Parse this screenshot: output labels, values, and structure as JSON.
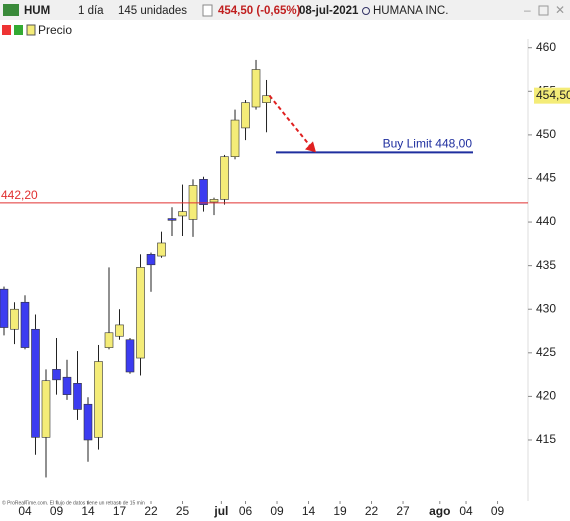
{
  "toolbar": {
    "symbol": "HUM",
    "period": "1 día",
    "units": "145 unidades",
    "price": "454,50 (-0,65%)",
    "date": "08-jul-2021",
    "name": "HUMANA INC."
  },
  "chart_data": {
    "type": "candlestick",
    "source": "© ProRealTime.com. El flujo de datos tiene un retraso de 15 min",
    "x": [
      0,
      1,
      2,
      3,
      4,
      5,
      6,
      7,
      8,
      9,
      10,
      11,
      12,
      13,
      14,
      15,
      16,
      17,
      18,
      19,
      20,
      21,
      22,
      23,
      24,
      25
    ],
    "series": [
      {
        "name": "Precio",
        "up_color": "#f4ec78",
        "down_color": "#3c3cf0",
        "open": [
          432.3,
          427.7,
          430.8,
          427.7,
          415.3,
          423.1,
          422.2,
          421.5,
          419.1,
          415.3,
          425.6,
          426.9,
          426.5,
          424.4,
          436.3,
          436.1,
          440.4,
          440.7,
          440.3,
          444.9,
          442.3,
          442.6,
          447.5,
          450.8,
          453.2,
          453.7
        ],
        "high": [
          432.6,
          430.8,
          431.6,
          429.4,
          423.1,
          426.7,
          424.2,
          425.2,
          419.9,
          425.9,
          434.8,
          430.0,
          426.7,
          436.3,
          436.5,
          438.9,
          441.7,
          444.3,
          444.9,
          445.2,
          442.8,
          447.7,
          452.9,
          454.0,
          458.6,
          456.3
        ],
        "low": [
          427.0,
          426.0,
          425.4,
          413.3,
          410.7,
          420.2,
          419.6,
          417.3,
          412.5,
          413.9,
          425.4,
          426.5,
          422.6,
          422.4,
          432.0,
          435.9,
          438.4,
          438.4,
          438.3,
          441.2,
          440.8,
          442.0,
          447.2,
          449.4,
          452.9,
          450.3
        ],
        "close": [
          427.9,
          430.0,
          425.6,
          415.3,
          421.8,
          421.9,
          420.2,
          418.5,
          415.0,
          424.0,
          427.3,
          428.2,
          422.8,
          434.8,
          435.1,
          437.6,
          440.2,
          441.2,
          444.2,
          442.0,
          442.6,
          447.5,
          451.7,
          453.7,
          457.5,
          454.5
        ]
      }
    ],
    "xlim": [
      -0.38,
      49.9
    ],
    "xticks": [
      {
        "value": 2,
        "label": "04"
      },
      {
        "value": 5,
        "label": "09"
      },
      {
        "value": 8,
        "label": "14"
      },
      {
        "value": 11,
        "label": "17"
      },
      {
        "value": 14,
        "label": "22"
      },
      {
        "value": 17,
        "label": "25"
      },
      {
        "value": 20.7,
        "label": "jul"
      },
      {
        "value": 23,
        "label": "06"
      },
      {
        "value": 26,
        "label": "09"
      },
      {
        "value": 29,
        "label": "14"
      },
      {
        "value": 32,
        "label": "19"
      },
      {
        "value": 35,
        "label": "22"
      },
      {
        "value": 38,
        "label": "27"
      },
      {
        "value": 41.5,
        "label": "ago"
      },
      {
        "value": 44,
        "label": "04"
      },
      {
        "value": 47,
        "label": "09"
      }
    ],
    "ylim": [
      408,
      461
    ],
    "yticks": [
      415,
      420,
      425,
      430,
      435,
      440,
      445,
      450,
      455,
      460
    ],
    "hlines": [
      {
        "value": 442.2,
        "label": "442,20",
        "color": "#e03030"
      },
      {
        "value": 448,
        "label": "Buy Limit 448,00",
        "color": "#1f2f9f"
      }
    ],
    "last_price": {
      "value": 454.5,
      "label": "454,50"
    }
  }
}
